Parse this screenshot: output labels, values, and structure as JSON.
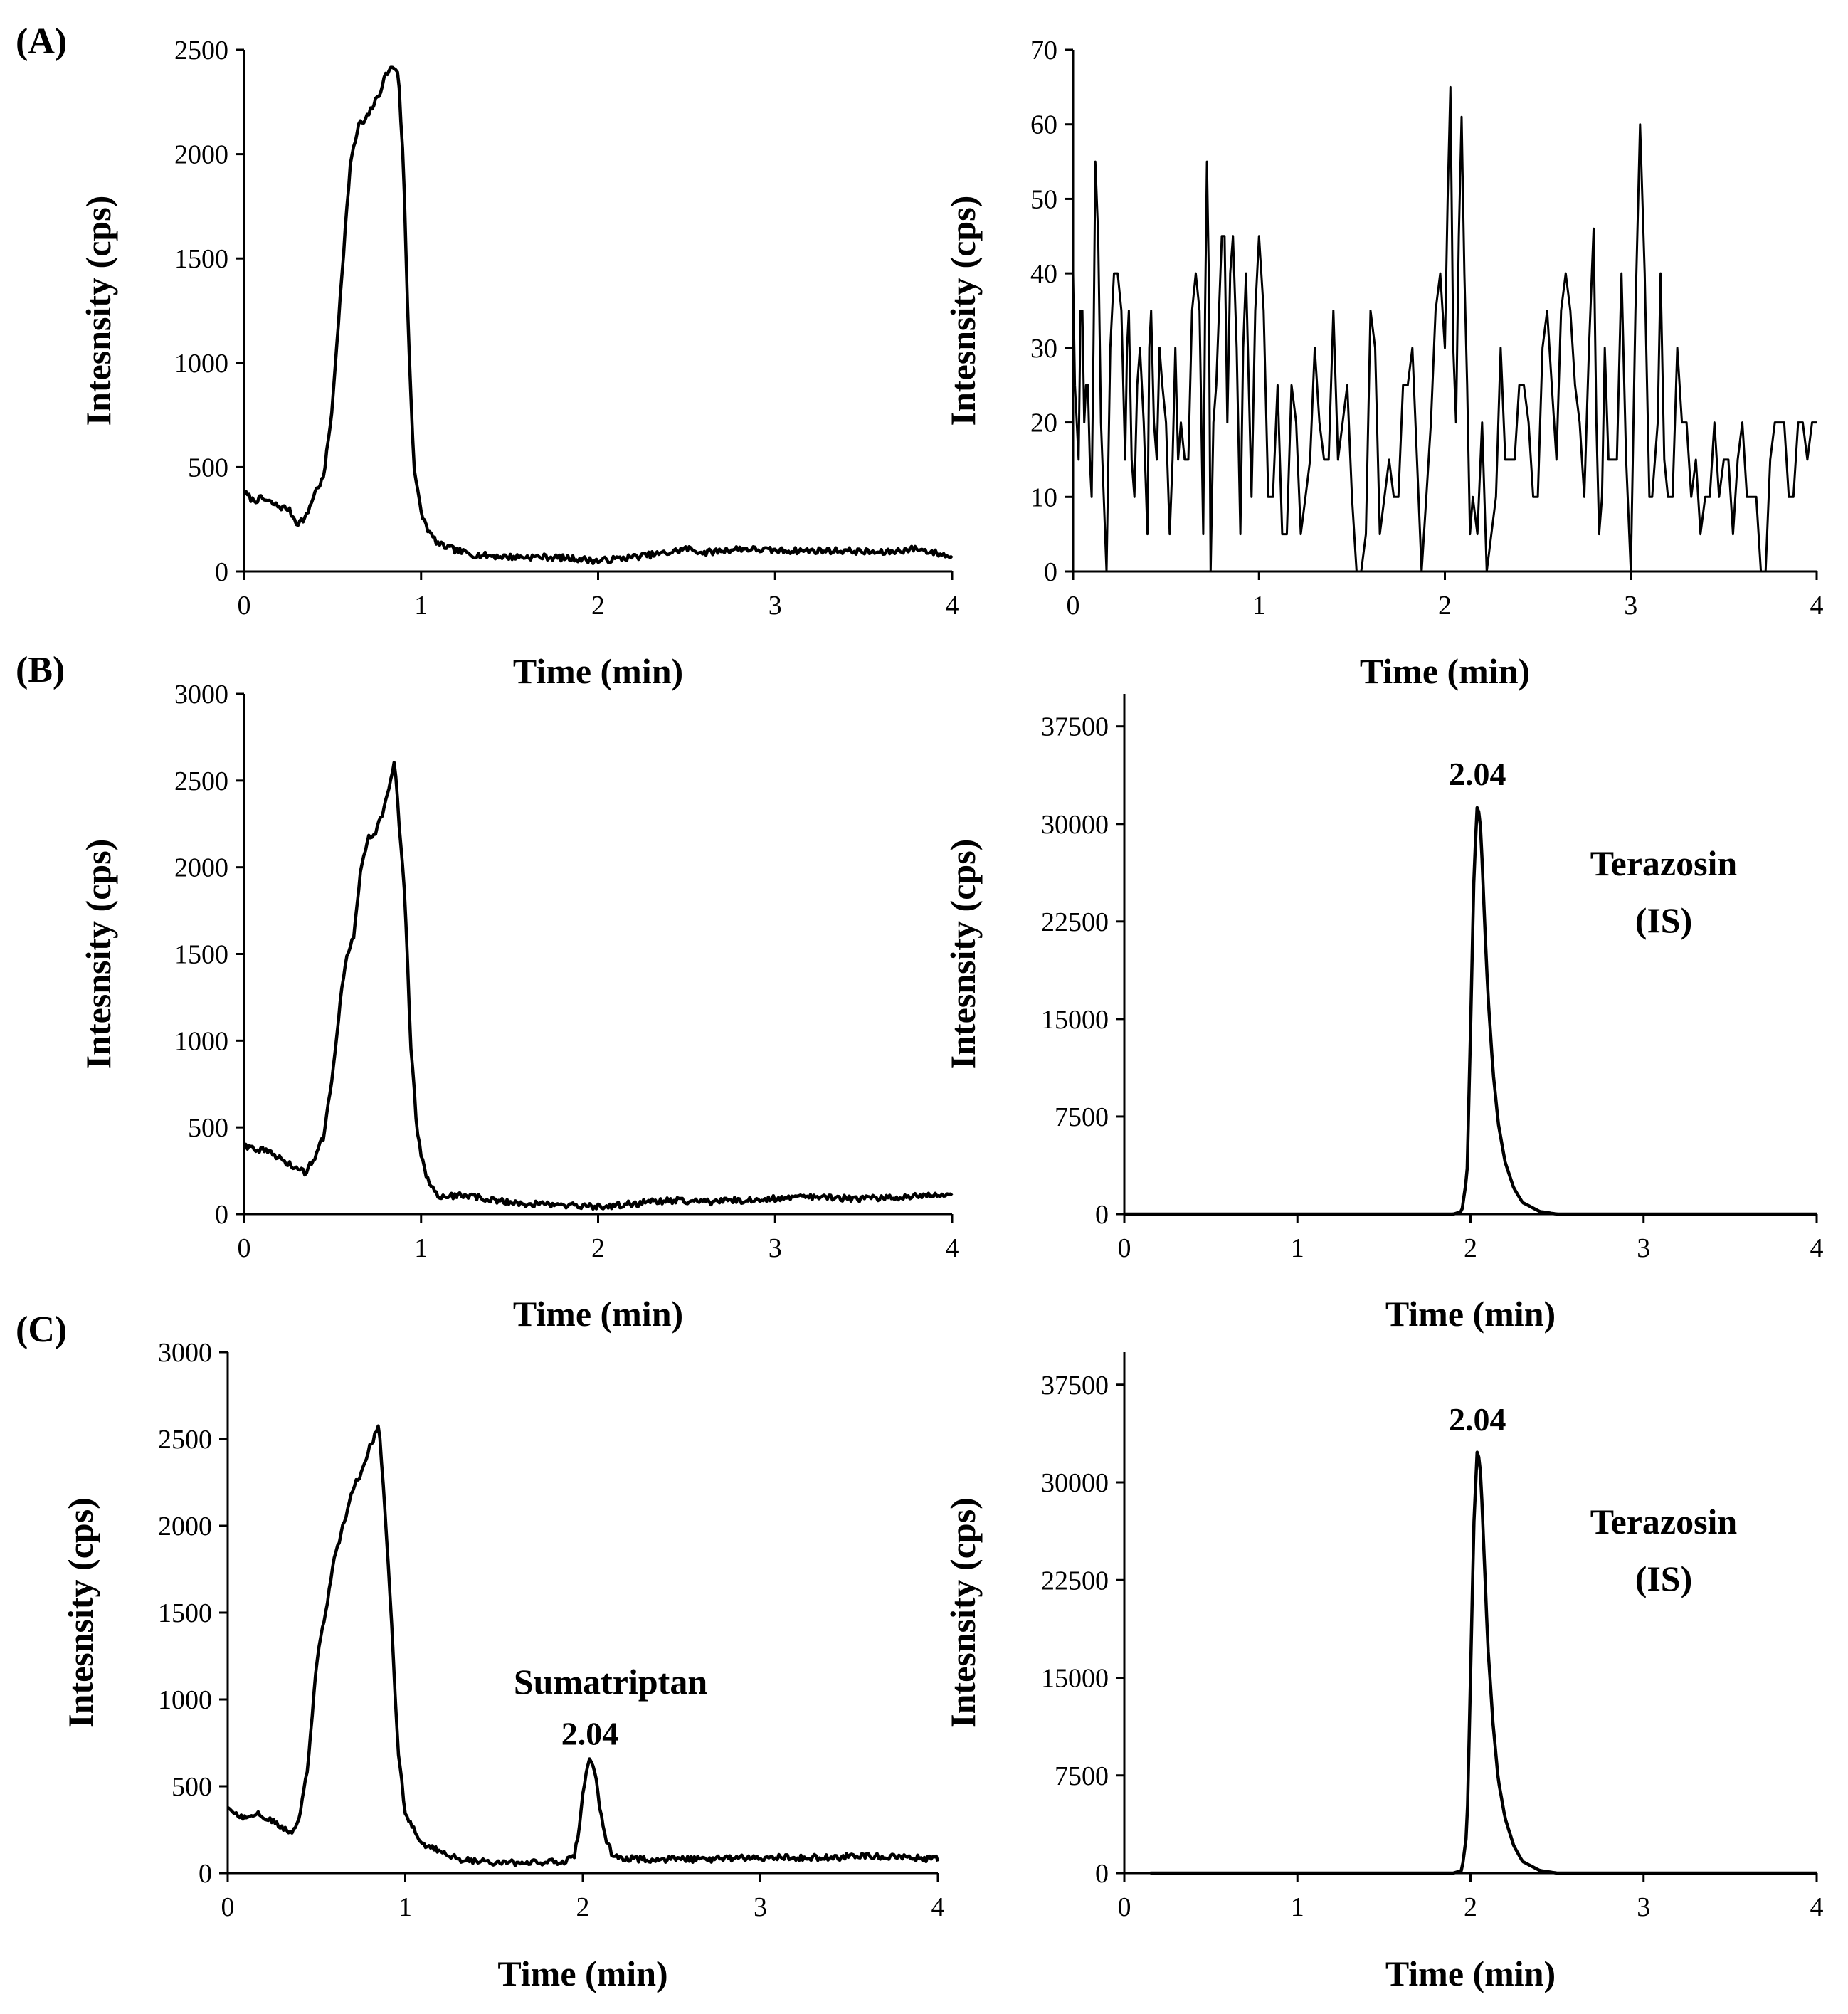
{
  "figure": {
    "panel_labels": [
      "(A)",
      "(B)",
      "(C)"
    ]
  },
  "chart_data": [
    {
      "id": "A-left",
      "panel": "(A)",
      "type": "line",
      "xlabel": "Time (min)",
      "ylabel": "Intesnsity (cps)",
      "xlim": [
        0,
        4
      ],
      "ylim": [
        0,
        2500
      ],
      "xticks": [
        0,
        1,
        2,
        3,
        4
      ],
      "yticks": [
        0,
        500,
        1000,
        1500,
        2000,
        2500
      ],
      "series": [
        {
          "name": "chromatogram",
          "shape": "matrix1",
          "peak_height": 2420,
          "x": [
            0,
            0.05,
            0.1,
            0.15,
            0.2,
            0.25,
            0.3,
            0.35,
            0.4,
            0.45,
            0.5,
            0.55,
            0.6,
            0.65,
            0.68,
            0.72,
            0.76,
            0.8,
            0.84,
            0.87,
            0.9,
            0.93,
            0.96,
            1.0,
            1.05,
            1.1,
            1.2,
            1.3,
            1.5,
            1.7,
            1.9,
            2.0,
            2.2,
            2.4,
            2.5,
            2.6,
            2.8,
            3.0,
            3.2,
            3.4,
            3.6,
            3.8,
            4.0
          ],
          "y": [
            380,
            340,
            350,
            330,
            310,
            300,
            230,
            260,
            380,
            450,
            800,
            1400,
            1950,
            2150,
            2150,
            2220,
            2280,
            2380,
            2420,
            2400,
            1950,
            1100,
            500,
            280,
            180,
            130,
            100,
            80,
            70,
            70,
            60,
            50,
            70,
            90,
            110,
            90,
            110,
            100,
            100,
            100,
            90,
            110,
            70
          ]
        }
      ]
    },
    {
      "id": "A-right",
      "panel": "(A)",
      "type": "line",
      "xlabel": "Time (min)",
      "ylabel": "Intesnsity (cps)",
      "xlim": [
        0,
        4
      ],
      "ylim": [
        0,
        70
      ],
      "xticks": [
        0,
        1,
        2,
        3,
        4
      ],
      "yticks": [
        0,
        10,
        20,
        30,
        40,
        50,
        60,
        70
      ],
      "series": [
        {
          "name": "noise",
          "shape": "noise",
          "x": [
            0,
            0.02,
            0.04,
            0.06,
            0.08,
            0.1,
            0.12,
            0.15,
            0.18,
            0.2,
            0.24,
            0.28,
            0.3,
            0.33,
            0.36,
            0.4,
            0.42,
            0.45,
            0.48,
            0.52,
            0.55,
            0.58,
            0.62,
            0.66,
            0.7,
            0.72,
            0.74,
            0.77,
            0.8,
            0.83,
            0.86,
            0.9,
            0.93,
            0.96,
            1.0,
            1.05,
            1.1,
            1.15,
            1.2,
            1.25,
            1.3,
            1.35,
            1.4,
            1.45,
            1.5,
            1.55,
            1.6,
            1.65,
            1.7,
            1.75,
            1.8,
            1.85,
            1.9,
            1.95,
            2.0,
            2.03,
            2.06,
            2.09,
            2.12,
            2.15,
            2.2,
            2.25,
            2.3,
            2.35,
            2.4,
            2.45,
            2.5,
            2.55,
            2.6,
            2.65,
            2.7,
            2.75,
            2.8,
            2.83,
            2.86,
            2.9,
            2.95,
            3.0,
            3.05,
            3.1,
            3.13,
            3.16,
            3.2,
            3.25,
            3.3,
            3.35,
            3.4,
            3.45,
            3.5,
            3.55,
            3.6,
            3.65,
            3.7,
            3.75,
            3.8,
            3.85,
            3.9,
            3.95,
            4.0
          ],
          "y": [
            40,
            20,
            35,
            20,
            25,
            10,
            55,
            20,
            0,
            30,
            40,
            15,
            35,
            10,
            30,
            5,
            35,
            15,
            25,
            5,
            30,
            20,
            15,
            40,
            5,
            55,
            0,
            25,
            45,
            20,
            45,
            5,
            40,
            10,
            45,
            10,
            25,
            5,
            20,
            10,
            30,
            15,
            35,
            20,
            10,
            0,
            35,
            5,
            15,
            10,
            25,
            15,
            10,
            35,
            30,
            65,
            20,
            61,
            25,
            10,
            20,
            5,
            30,
            15,
            25,
            20,
            10,
            35,
            15,
            40,
            25,
            10,
            46,
            5,
            30,
            15,
            40,
            0,
            60,
            10,
            15,
            40,
            10,
            30,
            20,
            15,
            10,
            20,
            15,
            5,
            20,
            10,
            0,
            15,
            20,
            10,
            20,
            15,
            20
          ]
        }
      ]
    },
    {
      "id": "B-left",
      "panel": "(B)",
      "type": "line",
      "xlabel": "Time (min)",
      "ylabel": "Intesnsity (cps)",
      "xlim": [
        0,
        4
      ],
      "ylim": [
        0,
        3000
      ],
      "xticks": [
        0,
        1,
        2,
        3,
        4
      ],
      "yticks": [
        0,
        500,
        1000,
        1500,
        2000,
        2500,
        3000
      ],
      "series": [
        {
          "name": "chromatogram",
          "shape": "matrix2",
          "peak_height": 2620,
          "x": [
            0,
            0.05,
            0.1,
            0.15,
            0.2,
            0.25,
            0.3,
            0.35,
            0.4,
            0.45,
            0.5,
            0.55,
            0.58,
            0.62,
            0.66,
            0.7,
            0.74,
            0.78,
            0.82,
            0.85,
            0.88,
            0.91,
            0.94,
            0.98,
            1.02,
            1.06,
            1.1,
            1.15,
            1.25,
            1.4,
            1.6,
            1.8,
            2.0,
            2.2,
            2.4,
            2.6,
            2.8,
            3.0,
            3.2,
            3.4,
            3.6,
            3.8,
            4.0
          ],
          "y": [
            400,
            380,
            370,
            350,
            320,
            290,
            260,
            240,
            330,
            450,
            800,
            1300,
            1500,
            1600,
            2000,
            2170,
            2200,
            2300,
            2450,
            2620,
            2200,
            1800,
            1000,
            450,
            250,
            150,
            110,
            100,
            110,
            80,
            60,
            50,
            40,
            60,
            80,
            70,
            80,
            90,
            100,
            90,
            90,
            110,
            110
          ]
        }
      ]
    },
    {
      "id": "B-right",
      "panel": "(B)",
      "type": "line",
      "xlabel": "Time (min)",
      "ylabel": "Intesnsity (cps)",
      "xlim": [
        0,
        4
      ],
      "ylim": [
        0,
        40000
      ],
      "xticks": [
        0,
        1,
        2,
        3,
        4
      ],
      "yticks": [
        0,
        7500,
        15000,
        22500,
        30000,
        37500
      ],
      "peak_label": "2.04",
      "annotation": [
        "Terazosin",
        "(IS)"
      ],
      "series": [
        {
          "name": "Terazosin (IS)",
          "shape": "peak",
          "peak_time": 2.04,
          "peak_height": 31800,
          "x": [
            0,
            1.9,
            1.95,
            1.98,
            2.0,
            2.02,
            2.04,
            2.06,
            2.08,
            2.1,
            2.13,
            2.16,
            2.2,
            2.25,
            2.3,
            2.4,
            2.5,
            3.0,
            4.0
          ],
          "y": [
            0,
            0,
            200,
            3000,
            14000,
            26000,
            31800,
            29500,
            23000,
            17000,
            11000,
            7000,
            4000,
            2000,
            900,
            200,
            0,
            0,
            0
          ]
        }
      ]
    },
    {
      "id": "C-left",
      "panel": "(C)",
      "type": "line",
      "xlabel": "Time (min)",
      "ylabel": "Intesnsity (cps)",
      "xlim": [
        0,
        4
      ],
      "ylim": [
        0,
        3000
      ],
      "xticks": [
        0,
        1,
        2,
        3,
        4
      ],
      "yticks": [
        0,
        500,
        1000,
        1500,
        2000,
        2500,
        3000
      ],
      "peak_label": "2.04",
      "annotation": [
        "Sumatriptan"
      ],
      "series": [
        {
          "name": "Sumatriptan",
          "shape": "matrix3",
          "peak_height": 2580,
          "second_peak_height": 650,
          "x": [
            0,
            0.05,
            0.1,
            0.15,
            0.2,
            0.25,
            0.3,
            0.35,
            0.4,
            0.45,
            0.5,
            0.55,
            0.6,
            0.65,
            0.7,
            0.75,
            0.8,
            0.85,
            0.88,
            0.92,
            0.96,
            1.0,
            1.05,
            1.1,
            1.2,
            1.3,
            1.5,
            1.7,
            1.9,
            1.95,
            1.98,
            2.0,
            2.02,
            2.04,
            2.06,
            2.08,
            2.1,
            2.13,
            2.16,
            2.2,
            2.3,
            2.5,
            2.7,
            3.0,
            3.2,
            3.4,
            3.6,
            3.8,
            4.0
          ],
          "y": [
            380,
            340,
            320,
            350,
            320,
            300,
            260,
            230,
            300,
            600,
            1200,
            1500,
            1800,
            2000,
            2200,
            2300,
            2450,
            2580,
            2200,
            1500,
            700,
            350,
            250,
            170,
            120,
            80,
            60,
            60,
            70,
            90,
            250,
            450,
            600,
            650,
            620,
            500,
            350,
            200,
            120,
            90,
            80,
            80,
            80,
            90,
            90,
            90,
            100,
            90,
            80
          ]
        }
      ]
    },
    {
      "id": "C-right",
      "panel": "(C)",
      "type": "line",
      "xlabel": "Time (min)",
      "ylabel": "Intesnsity (cps)",
      "xlim": [
        0,
        4
      ],
      "ylim": [
        0,
        40000
      ],
      "xticks": [
        0,
        1,
        2,
        3,
        4
      ],
      "yticks": [
        0,
        7500,
        15000,
        22500,
        30000,
        37500
      ],
      "peak_label": "2.04",
      "annotation": [
        "Terazosin",
        "(IS)"
      ],
      "series": [
        {
          "name": "Terazosin (IS)",
          "shape": "peak",
          "peak_time": 2.04,
          "peak_height": 32800,
          "x": [
            0.15,
            1.9,
            1.95,
            1.98,
            2.0,
            2.02,
            2.04,
            2.06,
            2.08,
            2.1,
            2.13,
            2.16,
            2.2,
            2.25,
            2.3,
            2.4,
            2.5,
            3.0,
            4.0
          ],
          "y": [
            0,
            0,
            200,
            3200,
            15000,
            27000,
            32800,
            30500,
            24000,
            17500,
            11500,
            7200,
            4200,
            2100,
            900,
            200,
            0,
            0,
            0
          ]
        }
      ]
    }
  ]
}
